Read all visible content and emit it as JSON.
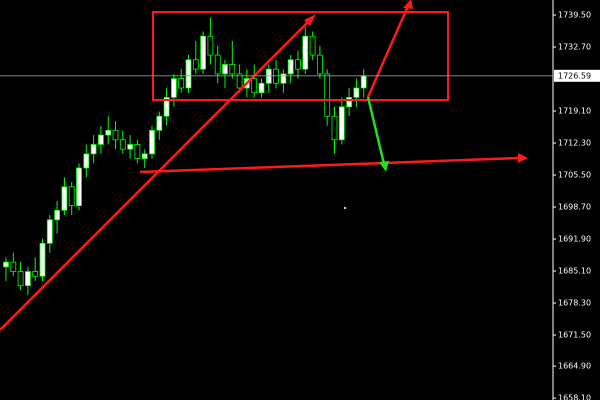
{
  "chart_data": {
    "type": "candlestick",
    "open": [
      1686,
      1687,
      1685,
      1682,
      1685,
      1684,
      1691,
      1696,
      1698,
      1703,
      1699,
      1707,
      1710,
      1712,
      1714,
      1715,
      1713,
      1711,
      1712,
      1709,
      1710,
      1715,
      1718,
      1722,
      1726,
      1724,
      1730,
      1728,
      1735,
      1731,
      1727,
      1729,
      1727,
      1724,
      1726,
      1723,
      1725,
      1728,
      1725,
      1727,
      1730,
      1728,
      1735,
      1731,
      1727,
      1718,
      1713,
      1720,
      1722,
      1724
    ],
    "high": [
      1688,
      1689,
      1687,
      1686,
      1688,
      1692,
      1697,
      1700,
      1705,
      1704,
      1708,
      1712,
      1714,
      1716,
      1718,
      1717,
      1715,
      1714,
      1713,
      1711,
      1716,
      1719,
      1724,
      1727,
      1728,
      1731,
      1734,
      1736,
      1739,
      1733,
      1730,
      1734,
      1729,
      1728,
      1729,
      1726,
      1729,
      1730,
      1728,
      1731,
      1732,
      1737,
      1736,
      1733,
      1728,
      1720,
      1722,
      1724,
      1726,
      1728
    ],
    "low": [
      1683,
      1684,
      1681,
      1680,
      1683,
      1683,
      1689,
      1693,
      1697,
      1697,
      1698,
      1705,
      1708,
      1710,
      1712,
      1711,
      1710,
      1709,
      1708,
      1707,
      1709,
      1713,
      1716,
      1720,
      1723,
      1723,
      1727,
      1727,
      1729,
      1725,
      1724,
      1726,
      1723,
      1722,
      1722,
      1722,
      1723,
      1724,
      1723,
      1725,
      1726,
      1727,
      1730,
      1726,
      1716,
      1710,
      1712,
      1718,
      1720,
      1722
    ],
    "close": [
      1687,
      1685,
      1682,
      1685,
      1684,
      1691,
      1696,
      1698,
      1703,
      1699,
      1707,
      1710,
      1712,
      1714,
      1715,
      1713,
      1711,
      1712,
      1709,
      1710,
      1715,
      1718,
      1722,
      1726,
      1724,
      1730,
      1728,
      1735,
      1731,
      1727,
      1729,
      1727,
      1724,
      1726,
      1723,
      1725,
      1728,
      1725,
      1727,
      1730,
      1728,
      1735,
      1731,
      1727,
      1718,
      1713,
      1720,
      1722,
      1724,
      1726.59
    ],
    "up_color": "#ffffff",
    "down_color": "#000000",
    "wick_color": "#00ff00",
    "ylim": [
      1657.7,
      1742.7
    ],
    "yticks": [
      {
        "value": 1739.5,
        "label": "1739.50"
      },
      {
        "value": 1732.7,
        "label": "1732.70"
      },
      {
        "value": 1719.1,
        "label": "1719.10"
      },
      {
        "value": 1712.3,
        "label": "1712.30"
      },
      {
        "value": 1705.5,
        "label": "1705.50"
      },
      {
        "value": 1698.7,
        "label": "1698.70"
      },
      {
        "value": 1691.9,
        "label": "1691.90"
      },
      {
        "value": 1685.1,
        "label": "1685.10"
      },
      {
        "value": 1678.3,
        "label": "1678.30"
      },
      {
        "value": 1671.5,
        "label": "1671.50"
      },
      {
        "value": 1664.9,
        "label": "1664.90"
      },
      {
        "value": 1658.1,
        "label": "1658.10"
      }
    ],
    "last_price": 1726.59
  }
}
